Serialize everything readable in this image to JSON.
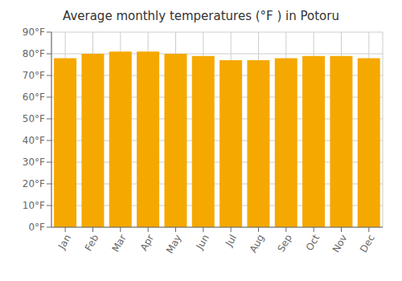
{
  "chart_data": {
    "type": "bar",
    "title": "Average monthly temperatures (°F ) in Potoru",
    "categories": [
      "Jan",
      "Feb",
      "Mar",
      "Apr",
      "May",
      "Jun",
      "Jul",
      "Aug",
      "Sep",
      "Oct",
      "Nov",
      "Dec"
    ],
    "values": [
      78.0,
      80.0,
      81.0,
      81.0,
      80.0,
      79.0,
      77.0,
      77.0,
      78.0,
      79.0,
      79.0,
      78.0
    ],
    "color": "#F5A800",
    "ylim": [
      0,
      90
    ],
    "yticks": [
      {
        "value": 0,
        "label": "0°F"
      },
      {
        "value": 10,
        "label": "10°F"
      },
      {
        "value": 20,
        "label": "20°F"
      },
      {
        "value": 30,
        "label": "30°F"
      },
      {
        "value": 40,
        "label": "40°F"
      },
      {
        "value": 50,
        "label": "50°F"
      },
      {
        "value": 60,
        "label": "60°F"
      },
      {
        "value": 70,
        "label": "70°F"
      },
      {
        "value": 80,
        "label": "80°F"
      },
      {
        "value": 90,
        "label": "90°F"
      }
    ],
    "grid": true
  }
}
